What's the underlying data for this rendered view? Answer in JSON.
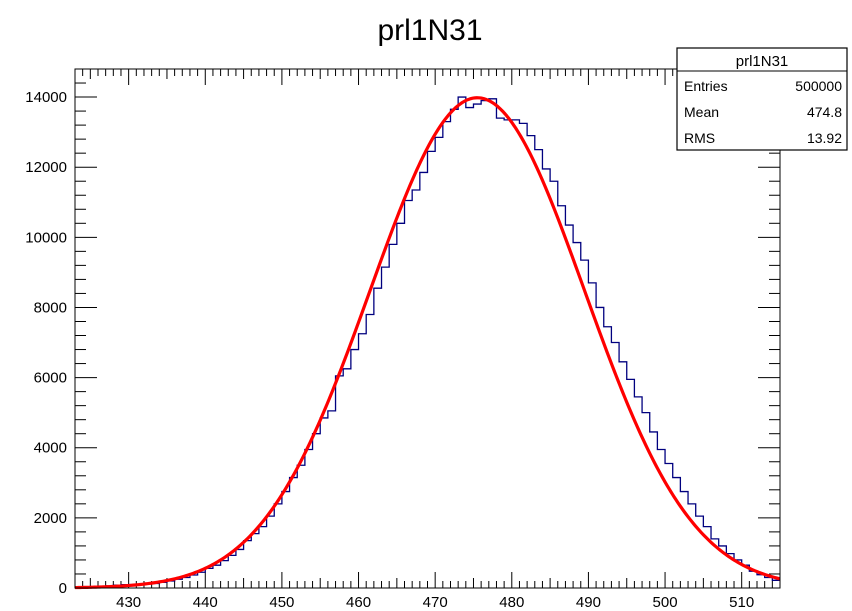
{
  "chart_data": {
    "type": "histogram",
    "title": "prl1N31",
    "xlim": [
      423,
      515
    ],
    "ylim": [
      0,
      14800
    ],
    "x_ticks": [
      430,
      440,
      450,
      460,
      470,
      480,
      490,
      500,
      510
    ],
    "y_ticks": [
      0,
      2000,
      4000,
      6000,
      8000,
      10000,
      12000,
      14000
    ],
    "x_tick_labels": [
      "430",
      "440",
      "450",
      "460",
      "470",
      "480",
      "490",
      "500",
      "510"
    ],
    "y_tick_labels": [
      "0",
      "2000",
      "4000",
      "6000",
      "8000",
      "10000",
      "12000",
      "14000"
    ],
    "histogram": {
      "color": "#00007f",
      "bin_width": 1,
      "bin_low_edges": [
        423,
        424,
        425,
        426,
        427,
        428,
        429,
        430,
        431,
        432,
        433,
        434,
        435,
        436,
        437,
        438,
        439,
        440,
        441,
        442,
        443,
        444,
        445,
        446,
        447,
        448,
        449,
        450,
        451,
        452,
        453,
        454,
        455,
        456,
        457,
        458,
        459,
        460,
        461,
        462,
        463,
        464,
        465,
        466,
        467,
        468,
        469,
        470,
        471,
        472,
        473,
        474,
        475,
        476,
        477,
        478,
        479,
        480,
        481,
        482,
        483,
        484,
        485,
        486,
        487,
        488,
        489,
        490,
        491,
        492,
        493,
        494,
        495,
        496,
        497,
        498,
        499,
        500,
        501,
        502,
        503,
        504,
        505,
        506,
        507,
        508,
        509,
        510,
        511,
        512,
        513,
        514
      ],
      "counts": [
        20,
        25,
        35,
        50,
        60,
        80,
        95,
        100,
        110,
        120,
        130,
        160,
        200,
        250,
        300,
        370,
        450,
        560,
        650,
        780,
        930,
        1100,
        1350,
        1550,
        1750,
        2050,
        2400,
        2750,
        3150,
        3500,
        3950,
        4400,
        4850,
        5050,
        6050,
        6250,
        6800,
        7250,
        7800,
        8550,
        9150,
        9800,
        10400,
        11050,
        11350,
        11850,
        12450,
        12850,
        13300,
        13650,
        14000,
        13700,
        13800,
        13900,
        13950,
        13400,
        13350,
        13350,
        13250,
        12900,
        12500,
        11950,
        11600,
        10900,
        10350,
        9850,
        9350,
        8700,
        8000,
        7450,
        7000,
        6450,
        5950,
        5450,
        5000,
        4450,
        3950,
        3550,
        3150,
        2750,
        2400,
        2050,
        1750,
        1400,
        1200,
        980,
        800,
        650,
        480,
        380,
        300,
        220
      ]
    },
    "fit": {
      "color": "#ff0000",
      "function": "gaus",
      "constant": 13980,
      "mean": 475.5,
      "sigma": 14.0,
      "x_range": [
        423,
        515
      ]
    },
    "stats_box": {
      "name": "prl1N31",
      "entries_label": "Entries",
      "entries_value": "500000",
      "mean_label": "Mean",
      "mean_value": "474.8",
      "rms_label": "RMS",
      "rms_value": "13.92"
    }
  }
}
